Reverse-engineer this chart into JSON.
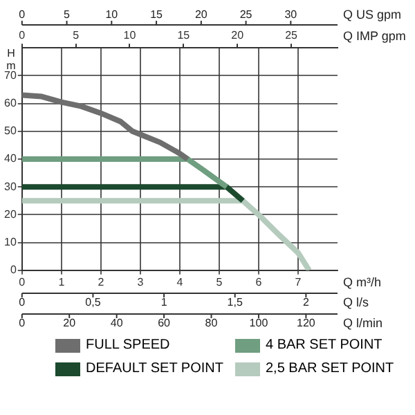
{
  "chart_data": {
    "type": "line",
    "xlabel": "Q m³/h",
    "ylabel": "H m",
    "xlim": [
      0,
      8
    ],
    "xticks": [
      0,
      1,
      2,
      3,
      4,
      5,
      6,
      7
    ],
    "x2label": "Q IMP gpm",
    "x2lim": [
      0,
      29.3
    ],
    "x2ticks": [
      0,
      5,
      10,
      15,
      20,
      25
    ],
    "ylim": [
      0,
      80
    ],
    "yticks": [
      0,
      10,
      20,
      30,
      40,
      50,
      60,
      70
    ],
    "grid": true,
    "legend": "bottom",
    "marker": "none",
    "line_style": "solid",
    "annotations": [
      "0",
      "5",
      "10",
      "15",
      "20",
      "25",
      "30",
      "Q US gpm",
      "0",
      "0,5",
      "1",
      "1,5",
      "2",
      "Q l/s",
      "0",
      "20",
      "40",
      "60",
      "80",
      "100",
      "120",
      "Q l/min"
    ],
    "series": [
      {
        "name": "FULL SPEED",
        "color": "#6e6e6e",
        "x": [
          0,
          0.5,
          1,
          1.5,
          2,
          2.5,
          2.8,
          3.5,
          4,
          4.2
        ],
        "values": [
          63,
          62.5,
          60.5,
          59,
          56.5,
          53.5,
          50,
          46,
          42,
          40
        ]
      },
      {
        "name": "4 BAR SET POINT",
        "color": "#6f9e80",
        "x": [
          0,
          4.2,
          4.6,
          5.19
        ],
        "values": [
          40,
          40,
          36,
          30
        ]
      },
      {
        "name": "DEFAULT SET POINT",
        "color": "#1c4a2e",
        "x": [
          0,
          5.19,
          5.6
        ],
        "values": [
          30,
          30,
          25
        ]
      },
      {
        "name": "2,5 BAR SET POINT",
        "color": "#b5cbbd",
        "x": [
          0,
          5.6,
          6,
          6.5,
          7,
          7.28
        ],
        "values": [
          25,
          25,
          20,
          13,
          6.3,
          0
        ]
      }
    ]
  }
}
